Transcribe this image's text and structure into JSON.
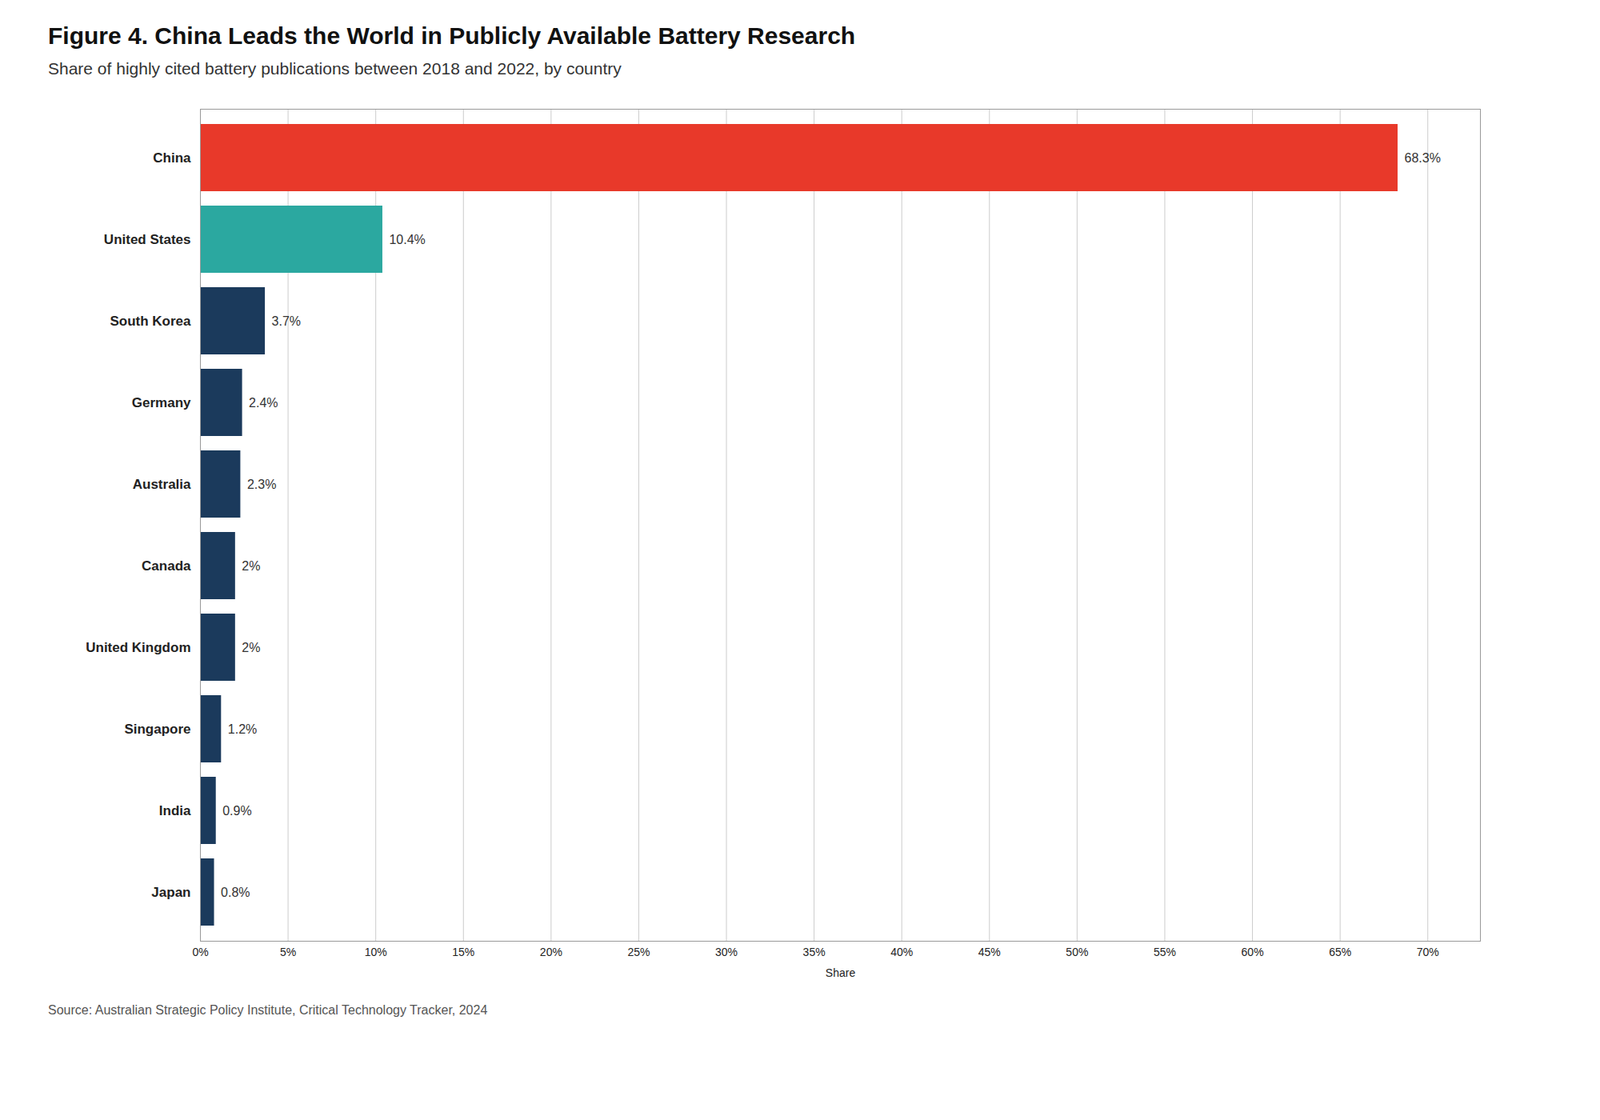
{
  "chart_data": {
    "type": "bar",
    "orientation": "horizontal",
    "title": "Figure 4. China Leads the World in Publicly Available Battery Research",
    "subtitle": "Share of highly cited battery publications between 2018 and 2022, by country",
    "source": "Source: Australian Strategic Policy Institute, Critical Technology Tracker, 2024",
    "xlabel": "Share",
    "categories": [
      "China",
      "United States",
      "South Korea",
      "Germany",
      "Australia",
      "Canada",
      "United Kingdom",
      "Singapore",
      "India",
      "Japan"
    ],
    "values": [
      68.3,
      10.4,
      3.7,
      2.4,
      2.3,
      2.0,
      2.0,
      1.2,
      0.9,
      0.8
    ],
    "value_labels": [
      "68.3%",
      "10.4%",
      "3.7%",
      "2.4%",
      "2.3%",
      "2%",
      "2%",
      "1.2%",
      "0.9%",
      "0.8%"
    ],
    "data_labels": true,
    "colors": [
      "#E8392A",
      "#2BA8A0",
      "#1B3A5C",
      "#1B3A5C",
      "#1B3A5C",
      "#1B3A5C",
      "#1B3A5C",
      "#1B3A5C",
      "#1B3A5C",
      "#1B3A5C"
    ],
    "xlim": [
      0,
      73
    ],
    "xticks": [
      {
        "value": 0,
        "label": "0%"
      },
      {
        "value": 5,
        "label": "5%"
      },
      {
        "value": 10,
        "label": "10%"
      },
      {
        "value": 15,
        "label": "15%"
      },
      {
        "value": 20,
        "label": "20%"
      },
      {
        "value": 25,
        "label": "25%"
      },
      {
        "value": 30,
        "label": "30%"
      },
      {
        "value": 35,
        "label": "35%"
      },
      {
        "value": 40,
        "label": "40%"
      },
      {
        "value": 45,
        "label": "45%"
      },
      {
        "value": 50,
        "label": "50%"
      },
      {
        "value": 55,
        "label": "55%"
      },
      {
        "value": 60,
        "label": "60%"
      },
      {
        "value": 65,
        "label": "65%"
      },
      {
        "value": 70,
        "label": "70%"
      }
    ],
    "grid": true
  }
}
